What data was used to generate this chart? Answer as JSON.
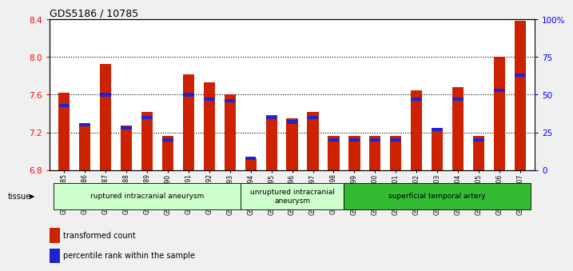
{
  "title": "GDS5186 / 10785",
  "samples": [
    "GSM1306885",
    "GSM1306886",
    "GSM1306887",
    "GSM1306888",
    "GSM1306889",
    "GSM1306890",
    "GSM1306891",
    "GSM1306892",
    "GSM1306893",
    "GSM1306894",
    "GSM1306895",
    "GSM1306896",
    "GSM1306897",
    "GSM1306898",
    "GSM1306899",
    "GSM1306900",
    "GSM1306901",
    "GSM1306902",
    "GSM1306903",
    "GSM1306904",
    "GSM1306905",
    "GSM1306906",
    "GSM1306907"
  ],
  "red_values": [
    7.62,
    7.28,
    7.93,
    7.27,
    7.42,
    7.16,
    7.82,
    7.73,
    7.6,
    6.93,
    7.38,
    7.35,
    7.42,
    7.16,
    7.16,
    7.16,
    7.16,
    7.65,
    7.22,
    7.68,
    7.16,
    8.0,
    8.38
  ],
  "blue_values": [
    43,
    30,
    50,
    28,
    35,
    20,
    50,
    47,
    46,
    8,
    35,
    32,
    35,
    20,
    20,
    20,
    20,
    47,
    27,
    47,
    20,
    53,
    63
  ],
  "ylim_left": [
    6.8,
    8.4
  ],
  "ylim_right": [
    0,
    100
  ],
  "yticks_left": [
    6.8,
    7.2,
    7.6,
    8.0,
    8.4
  ],
  "yticks_right": [
    0,
    25,
    50,
    75,
    100
  ],
  "ytick_labels_right": [
    "0",
    "25",
    "50",
    "75",
    "100%"
  ],
  "bar_color": "#cc2200",
  "blue_color": "#2222cc",
  "groups": [
    {
      "label": "ruptured intracranial aneurysm",
      "start": 0,
      "end": 9,
      "color": "#ccffcc"
    },
    {
      "label": "unruptured intracranial\naneurysm",
      "start": 9,
      "end": 14,
      "color": "#ccffcc"
    },
    {
      "label": "superficial temporal artery",
      "start": 14,
      "end": 23,
      "color": "#33bb33"
    }
  ],
  "legend_red": "transformed count",
  "legend_blue": "percentile rank within the sample",
  "fig_bg": "#f0f0f0",
  "plot_bg": "#ffffff"
}
